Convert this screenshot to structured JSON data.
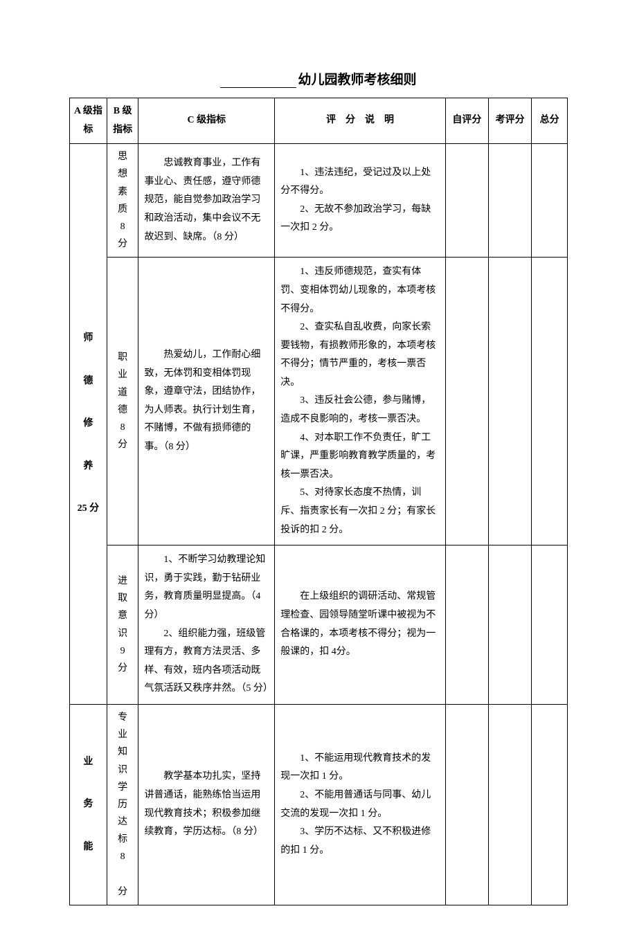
{
  "title_suffix": "幼儿园教师考核细则",
  "headers": {
    "a": "A 级指标",
    "b": "B 级指标",
    "c": "C 级指标",
    "d": "评　分　说　明",
    "e": "自评分",
    "f": "考评分",
    "g": "总分"
  },
  "rows": [
    {
      "a": "师\n\n德\n\n修\n\n养\n\n25 分",
      "b": "思想素质8分",
      "c": "　　忠诚教育事业，工作有事业心、责任感，遵守师德规范，能自觉参加政治学习和政治活动，集中会议不无故迟到、缺席。（8 分）",
      "d": "　　1、违法违纪，受记过及以上处分不得分。\n　　2、无故不参加政治学习，每缺一次扣 2 分。"
    },
    {
      "b": "职业道德8分",
      "c": "　　热爱幼儿，工作耐心细致，无体罚和变相体罚现象，遵章守法，团结协作，为人师表。执行计划生育，不赌博，不做有损师德的事。（8 分）",
      "d": "　　1、违反师德规范，查实有体罚、变相体罚幼儿现象的，本项考核不得分。\n　　2、查实私自乱收费，向家长索要钱物，有损教师形象的，本项考核不得分；情节严重的，考核一票否决。\n　　3、违反社会公德，参与赌博，造成不良影响的，考核一票否决。\n　　4、对本职工作不负责任，旷工旷课，严重影响教育教学质量的，考核一票否决。\n　　5、对待家长态度不热情，训斥、指责家长有一次扣 2 分；有家长投诉的扣 2 分。"
    },
    {
      "b": "进取意识9分",
      "c": "　　1、不断学习幼教理论知识，勇于实践，勤于钻研业务，教育质量明显提高。（4 分）\n　　2、组织能力强，班级管理有方，教育方法灵活、多样、有效，班内各项活动既气氛活跃又秩序井然。（5 分）",
      "d": "　　在上级组织的调研活动、常规管理检查、园领导随堂听课中被视为不合格课的，本项考核不得分；视为一般课的，扣 4分。"
    },
    {
      "a": "业\n\n务\n\n能",
      "b": "专业知识学历达标8 分",
      "c": "　　教学基本功扎实，坚持讲普通话，能熟练恰当运用现代教育技术；积极参加继续教育，学历达标。（8 分）",
      "d": "　　1、不能运用现代教育技术的发现一次扣 1 分。\n　　2、不能用普通话与同事、幼儿交流的发现一次扣 1 分。\n　　3、学历不达标、又不积极进修的扣 1 分。"
    }
  ]
}
